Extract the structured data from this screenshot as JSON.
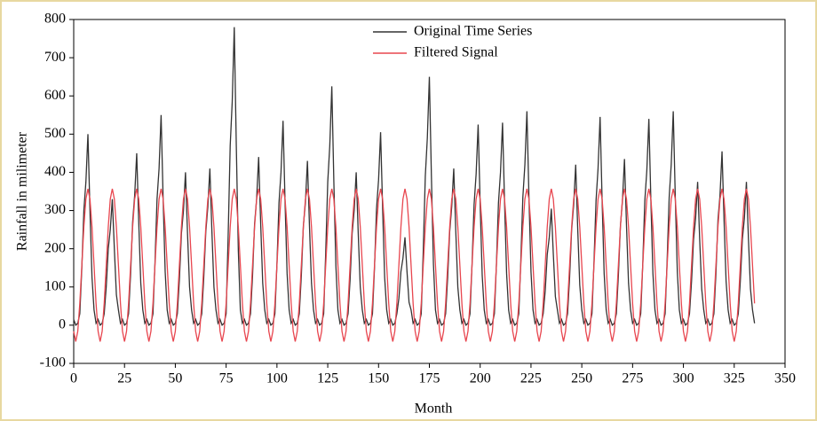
{
  "chart_data": {
    "type": "line",
    "xlabel": "Month",
    "ylabel": "Rainfall in milimeter",
    "xlim": [
      0,
      350
    ],
    "xticks": [
      0,
      25,
      50,
      75,
      100,
      125,
      150,
      175,
      200,
      225,
      250,
      275,
      300,
      325,
      350
    ],
    "ylim": [
      -100,
      800
    ],
    "yticks": [
      -100,
      0,
      100,
      200,
      300,
      400,
      500,
      600,
      700,
      800
    ],
    "legend": "top-center",
    "x": [
      0,
      1,
      2,
      3,
      4,
      5,
      6,
      7,
      8,
      9,
      10,
      11,
      12,
      13,
      14,
      15,
      16,
      17,
      18,
      19,
      20,
      21,
      22,
      23,
      24,
      25,
      26,
      27,
      28,
      29,
      30,
      31,
      32,
      33,
      34,
      35,
      36,
      37,
      38,
      39,
      40,
      41,
      42,
      43,
      44,
      45,
      46,
      47,
      48,
      49,
      50,
      51,
      52,
      53,
      54,
      55,
      56,
      57,
      58,
      59,
      60,
      61,
      62,
      63,
      64,
      65,
      66,
      67,
      68,
      69,
      70,
      71,
      72,
      73,
      74,
      75,
      76,
      77,
      78,
      79,
      80,
      81,
      82,
      83,
      84,
      85,
      86,
      87,
      88,
      89,
      90,
      91,
      92,
      93,
      94,
      95,
      96,
      97,
      98,
      99,
      100,
      101,
      102,
      103,
      104,
      105,
      106,
      107,
      108,
      109,
      110,
      111,
      112,
      113,
      114,
      115,
      116,
      117,
      118,
      119,
      120,
      121,
      122,
      123,
      124,
      125,
      126,
      127,
      128,
      129,
      130,
      131,
      132,
      133,
      134,
      135,
      136,
      137,
      138,
      139,
      140,
      141,
      142,
      143,
      144,
      145,
      146,
      147,
      148,
      149,
      150,
      151,
      152,
      153,
      154,
      155,
      156,
      157,
      158,
      159,
      160,
      161,
      162,
      163,
      164,
      165,
      166,
      167,
      168,
      169,
      170,
      171,
      172,
      173,
      174,
      175,
      176,
      177,
      178,
      179,
      180,
      181,
      182,
      183,
      184,
      185,
      186,
      187,
      188,
      189,
      190,
      191,
      192,
      193,
      194,
      195,
      196,
      197,
      198,
      199,
      200,
      201,
      202,
      203,
      204,
      205,
      206,
      207,
      208,
      209,
      210,
      211,
      212,
      213,
      214,
      215,
      216,
      217,
      218,
      219,
      220,
      221,
      222,
      223,
      224,
      225,
      226,
      227,
      228,
      229,
      230,
      231,
      232,
      233,
      234,
      235,
      236,
      237,
      238,
      239,
      240,
      241,
      242,
      243,
      244,
      245,
      246,
      247,
      248,
      249,
      250,
      251,
      252,
      253,
      254,
      255,
      256,
      257,
      258,
      259,
      260,
      261,
      262,
      263,
      264,
      265,
      266,
      267,
      268,
      269,
      270,
      271,
      272,
      273,
      274,
      275,
      276,
      277,
      278,
      279,
      280,
      281,
      282,
      283,
      284,
      285,
      286,
      287,
      288,
      289,
      290,
      291,
      292,
      293,
      294,
      295,
      296,
      297,
      298,
      299,
      300,
      301,
      302,
      303,
      304,
      305,
      306,
      307,
      308,
      309,
      310,
      311,
      312,
      313,
      314,
      315,
      316,
      317,
      318,
      319,
      320,
      321,
      322,
      323,
      324,
      325,
      326,
      327,
      328,
      329,
      330,
      331,
      332,
      333,
      334,
      335
    ],
    "series": [
      {
        "name": "Original Time Series",
        "color": "#333333",
        "values": [
          15,
          0,
          5,
          30,
          150,
          300,
          375,
          500,
          300,
          125,
          40,
          5,
          15,
          0,
          5,
          30,
          100,
          200,
          250,
          330,
          200,
          80,
          40,
          5,
          15,
          0,
          5,
          30,
          135,
          270,
          340,
          450,
          270,
          110,
          40,
          5,
          15,
          0,
          5,
          30,
          165,
          330,
          410,
          550,
          330,
          140,
          40,
          5,
          15,
          0,
          5,
          30,
          120,
          240,
          300,
          400,
          240,
          100,
          40,
          5,
          15,
          0,
          5,
          30,
          125,
          245,
          310,
          410,
          245,
          100,
          40,
          5,
          15,
          0,
          5,
          30,
          235,
          470,
          585,
          780,
          470,
          195,
          40,
          5,
          15,
          0,
          5,
          30,
          130,
          265,
          330,
          440,
          265,
          110,
          40,
          5,
          15,
          0,
          5,
          30,
          160,
          320,
          400,
          535,
          320,
          135,
          40,
          5,
          15,
          0,
          5,
          30,
          130,
          260,
          320,
          430,
          260,
          110,
          40,
          5,
          15,
          0,
          5,
          30,
          190,
          375,
          470,
          625,
          375,
          155,
          40,
          5,
          15,
          0,
          5,
          30,
          120,
          240,
          300,
          400,
          240,
          100,
          40,
          5,
          15,
          0,
          5,
          30,
          150,
          305,
          380,
          505,
          305,
          125,
          40,
          5,
          15,
          0,
          5,
          30,
          70,
          140,
          175,
          230,
          140,
          60,
          40,
          5,
          15,
          0,
          5,
          30,
          195,
          390,
          490,
          650,
          390,
          160,
          40,
          5,
          15,
          0,
          5,
          30,
          125,
          245,
          310,
          410,
          245,
          100,
          40,
          5,
          15,
          0,
          5,
          30,
          160,
          315,
          395,
          525,
          315,
          130,
          40,
          5,
          15,
          0,
          5,
          30,
          160,
          320,
          400,
          530,
          320,
          135,
          40,
          5,
          15,
          0,
          5,
          30,
          170,
          335,
          420,
          560,
          335,
          140,
          40,
          5,
          15,
          0,
          5,
          30,
          90,
          185,
          230,
          305,
          185,
          75,
          40,
          5,
          15,
          0,
          5,
          30,
          125,
          250,
          315,
          420,
          250,
          105,
          40,
          5,
          15,
          0,
          5,
          30,
          165,
          325,
          410,
          545,
          325,
          135,
          40,
          5,
          15,
          0,
          5,
          30,
          130,
          260,
          325,
          435,
          260,
          110,
          40,
          5,
          15,
          0,
          5,
          30,
          160,
          325,
          405,
          540,
          325,
          135,
          40,
          5,
          15,
          0,
          5,
          30,
          170,
          335,
          420,
          560,
          335,
          140,
          40,
          5,
          15,
          0,
          5,
          30,
          115,
          225,
          280,
          375,
          225,
          95,
          40,
          5,
          15,
          0,
          5,
          30,
          135,
          275,
          340,
          455,
          275,
          115,
          40,
          5,
          15,
          0,
          5,
          30,
          115,
          225,
          280,
          375,
          225,
          95,
          40,
          5
        ]
      },
      {
        "name": "Filtered Signal",
        "color": "#e8464f",
        "values": [
          -16,
          -43,
          -16,
          57,
          157,
          257,
          330,
          357,
          330,
          257,
          157,
          57,
          -16,
          -43,
          -16,
          57,
          157,
          257,
          330,
          357,
          330,
          257,
          157,
          57,
          -16,
          -43,
          -16,
          57,
          157,
          257,
          330,
          357,
          330,
          257,
          157,
          57,
          -16,
          -43,
          -16,
          57,
          157,
          257,
          330,
          357,
          330,
          257,
          157,
          57,
          -16,
          -43,
          -16,
          57,
          157,
          257,
          330,
          357,
          330,
          257,
          157,
          57,
          -16,
          -43,
          -16,
          57,
          157,
          257,
          330,
          357,
          330,
          257,
          157,
          57,
          -16,
          -43,
          -16,
          57,
          157,
          257,
          330,
          357,
          330,
          257,
          157,
          57,
          -16,
          -43,
          -16,
          57,
          157,
          257,
          330,
          357,
          330,
          257,
          157,
          57,
          -16,
          -43,
          -16,
          57,
          157,
          257,
          330,
          357,
          330,
          257,
          157,
          57,
          -16,
          -43,
          -16,
          57,
          157,
          257,
          330,
          357,
          330,
          257,
          157,
          57,
          -16,
          -43,
          -16,
          57,
          157,
          257,
          330,
          357,
          330,
          257,
          157,
          57,
          -16,
          -43,
          -16,
          57,
          157,
          257,
          330,
          357,
          330,
          257,
          157,
          57,
          -16,
          -43,
          -16,
          57,
          157,
          257,
          330,
          357,
          330,
          257,
          157,
          57,
          -16,
          -43,
          -16,
          57,
          157,
          257,
          330,
          357,
          330,
          257,
          157,
          57,
          -16,
          -43,
          -16,
          57,
          157,
          257,
          330,
          357,
          330,
          257,
          157,
          57,
          -16,
          -43,
          -16,
          57,
          157,
          257,
          330,
          357,
          330,
          257,
          157,
          57,
          -16,
          -43,
          -16,
          57,
          157,
          257,
          330,
          357,
          330,
          257,
          157,
          57,
          -16,
          -43,
          -16,
          57,
          157,
          257,
          330,
          357,
          330,
          257,
          157,
          57,
          -16,
          -43,
          -16,
          57,
          157,
          257,
          330,
          357,
          330,
          257,
          157,
          57,
          -16,
          -43,
          -16,
          57,
          157,
          257,
          330,
          357,
          330,
          257,
          157,
          57,
          -16,
          -43,
          -16,
          57,
          157,
          257,
          330,
          357,
          330,
          257,
          157,
          57,
          -16,
          -43,
          -16,
          57,
          157,
          257,
          330,
          357,
          330,
          257,
          157,
          57,
          -16,
          -43,
          -16,
          57,
          157,
          257,
          330,
          357,
          330,
          257,
          157,
          57,
          -16,
          -43,
          -16,
          57,
          157,
          257,
          330,
          357,
          330,
          257,
          157,
          57,
          -16,
          -43,
          -16,
          57,
          157,
          257,
          330,
          357,
          330,
          257,
          157,
          57,
          -16,
          -43,
          -16,
          57,
          157,
          257,
          330,
          357,
          330,
          257,
          157,
          57,
          -16,
          -43,
          -16,
          57,
          157,
          257,
          330,
          357,
          330,
          257,
          157,
          57,
          -16,
          -43,
          -16,
          57,
          157,
          257,
          330,
          357,
          330,
          257,
          157,
          57
        ]
      }
    ]
  }
}
